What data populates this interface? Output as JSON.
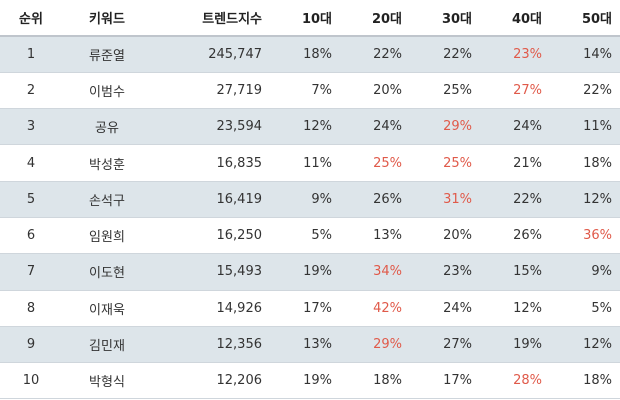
{
  "headers": [
    "순위",
    "키워드",
    "트렌드지수",
    "10대",
    "20대",
    "30대",
    "40대",
    "50대"
  ],
  "colors": {
    "stripe": "#dde5ea",
    "highlight": "#e05a4a"
  },
  "rows": [
    {
      "rank": "1",
      "keyword": "류준열",
      "index": "245,747",
      "ages": [
        "18%",
        "22%",
        "22%",
        "23%",
        "14%"
      ],
      "highlight": [
        false,
        false,
        false,
        true,
        false
      ]
    },
    {
      "rank": "2",
      "keyword": "이범수",
      "index": "27,719",
      "ages": [
        "7%",
        "20%",
        "25%",
        "27%",
        "22%"
      ],
      "highlight": [
        false,
        false,
        false,
        true,
        false
      ]
    },
    {
      "rank": "3",
      "keyword": "공유",
      "index": "23,594",
      "ages": [
        "12%",
        "24%",
        "29%",
        "24%",
        "11%"
      ],
      "highlight": [
        false,
        false,
        true,
        false,
        false
      ]
    },
    {
      "rank": "4",
      "keyword": "박성훈",
      "index": "16,835",
      "ages": [
        "11%",
        "25%",
        "25%",
        "21%",
        "18%"
      ],
      "highlight": [
        false,
        true,
        true,
        false,
        false
      ]
    },
    {
      "rank": "5",
      "keyword": "손석구",
      "index": "16,419",
      "ages": [
        "9%",
        "26%",
        "31%",
        "22%",
        "12%"
      ],
      "highlight": [
        false,
        false,
        true,
        false,
        false
      ]
    },
    {
      "rank": "6",
      "keyword": "임원희",
      "index": "16,250",
      "ages": [
        "5%",
        "13%",
        "20%",
        "26%",
        "36%"
      ],
      "highlight": [
        false,
        false,
        false,
        false,
        true
      ]
    },
    {
      "rank": "7",
      "keyword": "이도현",
      "index": "15,493",
      "ages": [
        "19%",
        "34%",
        "23%",
        "15%",
        "9%"
      ],
      "highlight": [
        false,
        true,
        false,
        false,
        false
      ]
    },
    {
      "rank": "8",
      "keyword": "이재욱",
      "index": "14,926",
      "ages": [
        "17%",
        "42%",
        "24%",
        "12%",
        "5%"
      ],
      "highlight": [
        false,
        true,
        false,
        false,
        false
      ]
    },
    {
      "rank": "9",
      "keyword": "김민재",
      "index": "12,356",
      "ages": [
        "13%",
        "29%",
        "27%",
        "19%",
        "12%"
      ],
      "highlight": [
        false,
        true,
        false,
        false,
        false
      ]
    },
    {
      "rank": "10",
      "keyword": "박형식",
      "index": "12,206",
      "ages": [
        "19%",
        "18%",
        "17%",
        "28%",
        "18%"
      ],
      "highlight": [
        false,
        false,
        false,
        true,
        false
      ]
    }
  ]
}
